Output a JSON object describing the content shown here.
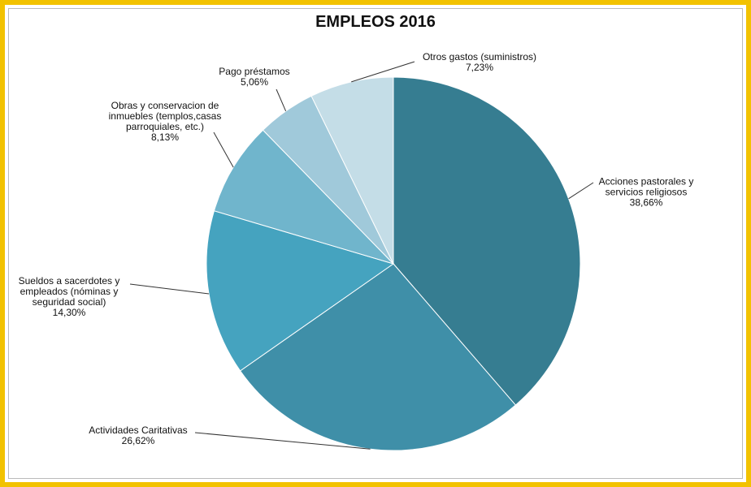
{
  "chart_data": {
    "type": "pie",
    "title": "EMPLEOS 2016",
    "categories": [
      "Acciones pastorales y servicios religiosos",
      "Actividades Caritativas",
      "Sueldos a sacerdotes y empleados (nóminas y seguridad social)",
      "Obras y conservacion de inmuebles (templos,casas parroquiales, etc.)",
      "Pago préstamos",
      "Otros gastos (suministros)"
    ],
    "values": [
      38.66,
      26.62,
      14.3,
      8.13,
      5.06,
      7.23
    ],
    "value_labels": [
      "38,66%",
      "26,62%",
      "14,30%",
      "8,13%",
      "5,06%",
      "7,23%"
    ],
    "colors": [
      "#367d91",
      "#3f8fa8",
      "#45a3bf",
      "#70b5cc",
      "#a0c9da",
      "#c4dde7"
    ]
  }
}
